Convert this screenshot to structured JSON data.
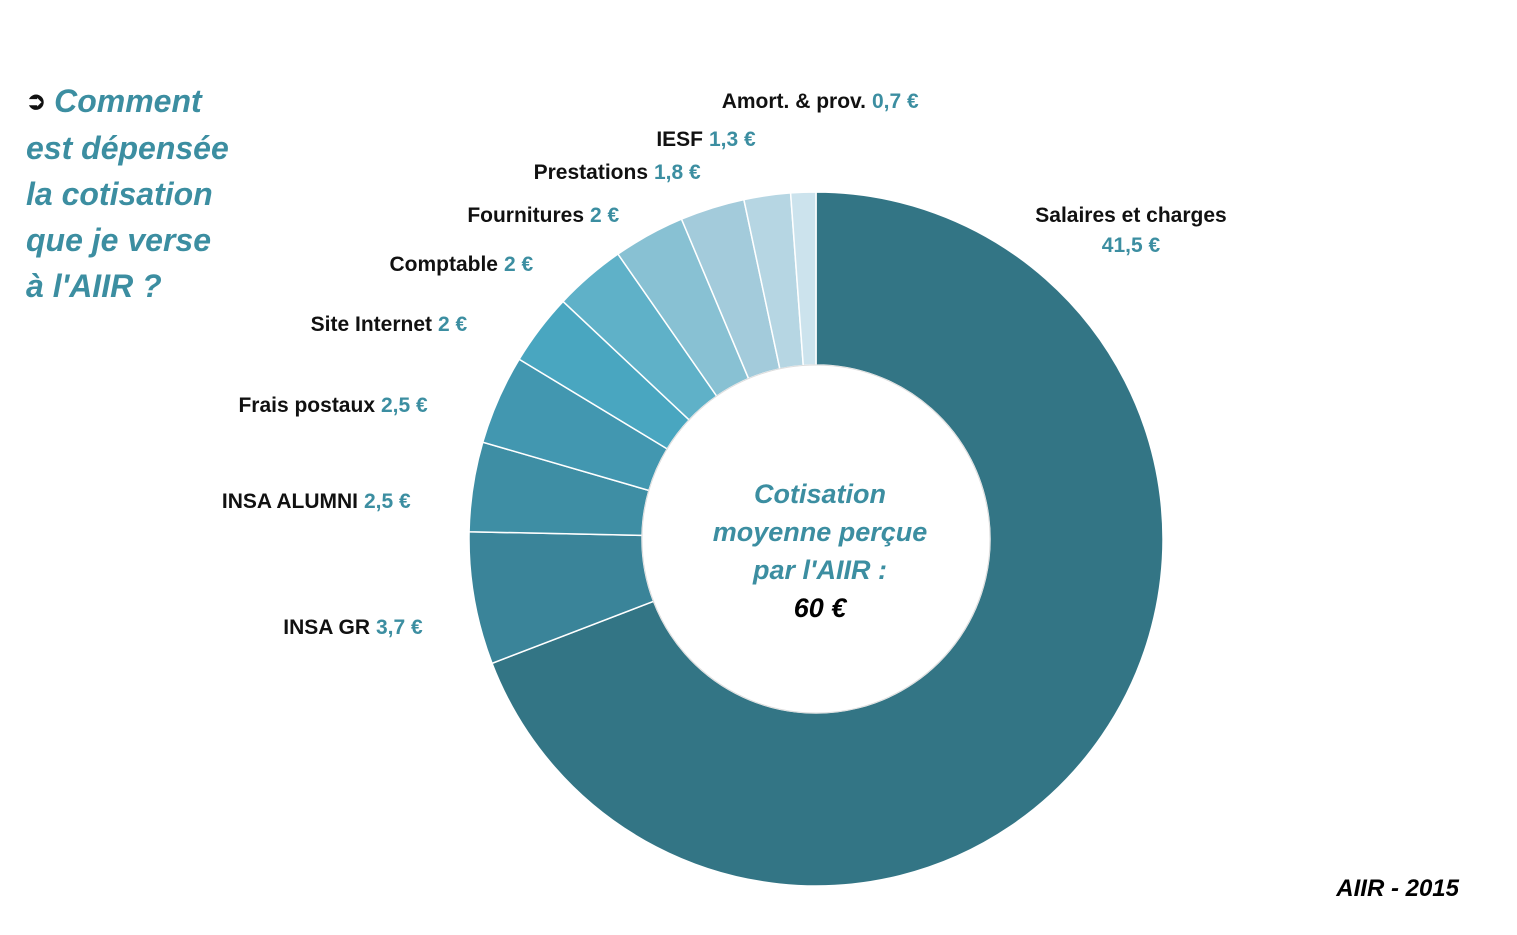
{
  "question": {
    "bullet_icon": "arrow-bullet-icon",
    "lines": [
      "Comment",
      "est dépensée",
      "la cotisation",
      "que je verse",
      "à l'AIIR ?"
    ]
  },
  "footer": "AIIR - 2015",
  "center": {
    "lines": [
      "Cotisation",
      "moyenne perçue",
      "par l'AIIR :"
    ],
    "total": "60 €"
  },
  "chart_data": {
    "type": "pie",
    "variant": "donut",
    "total": 60,
    "categories": [
      "Salaires et charges",
      "INSA GR",
      "INSA ALUMNI",
      "Frais postaux",
      "Site Internet",
      "Comptable",
      "Fournitures",
      "Prestations",
      "IESF",
      "Amort. & prov."
    ],
    "values": [
      41.5,
      3.7,
      2.5,
      2.5,
      2,
      2,
      2,
      1.8,
      1.3,
      0.7
    ],
    "value_labels": [
      "41,5 €",
      "3,7 €",
      "2,5 €",
      "2,5 €",
      "2 €",
      "2 €",
      "2 €",
      "1,8 €",
      "1,3 €",
      "0,7 €"
    ],
    "colors": [
      "#337585",
      "#3a8499",
      "#3e8ea4",
      "#4297b0",
      "#49a6c0",
      "#5fb1c8",
      "#88c1d3",
      "#a3cbdb",
      "#b6d6e3",
      "#cce3ed"
    ]
  }
}
